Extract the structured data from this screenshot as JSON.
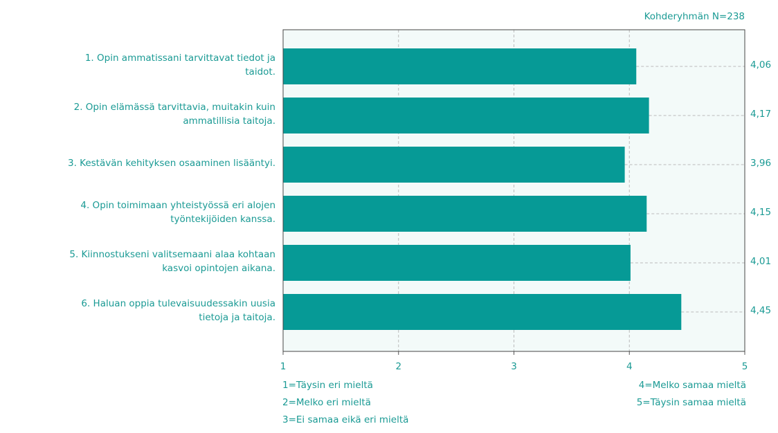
{
  "chart_data": {
    "type": "bar",
    "orientation": "horizontal",
    "annotation": "Kohderyhmän N=238",
    "categories": [
      "1. Opin ammatissani tarvittavat tiedot ja\ntaidot.",
      "2. Opin elämässä tarvittavia, muitakin kuin\nammatillisia taitoja.",
      "3. Kestävän kehityksen osaaminen lisääntyi.",
      "4. Opin toimimaan yhteistyössä eri alojen\ntyöntekijöiden kanssa.",
      "5. Kiinnostukseni valitsemaani alaa kohtaan\nkasvoi opintojen aikana.",
      "6. Haluan oppia tulevaisuudessakin uusia\ntietoja ja taitoja."
    ],
    "values": [
      4.06,
      4.17,
      3.96,
      4.15,
      4.01,
      4.45
    ],
    "value_labels": [
      "4,06",
      "4,17",
      "3,96",
      "4,15",
      "4,01",
      "4,45"
    ],
    "color": "#069a96",
    "xlim": [
      1,
      5
    ],
    "xticks": [
      1,
      2,
      3,
      4,
      5
    ],
    "grid": true,
    "scale_labels_left": [
      "1=Täysin eri mieltä",
      "2=Melko eri mieltä",
      "3=Ei samaa eikä eri mieltä"
    ],
    "scale_labels_right": [
      "4=Melko samaa mieltä",
      "5=Täysin samaa mieltä"
    ]
  }
}
